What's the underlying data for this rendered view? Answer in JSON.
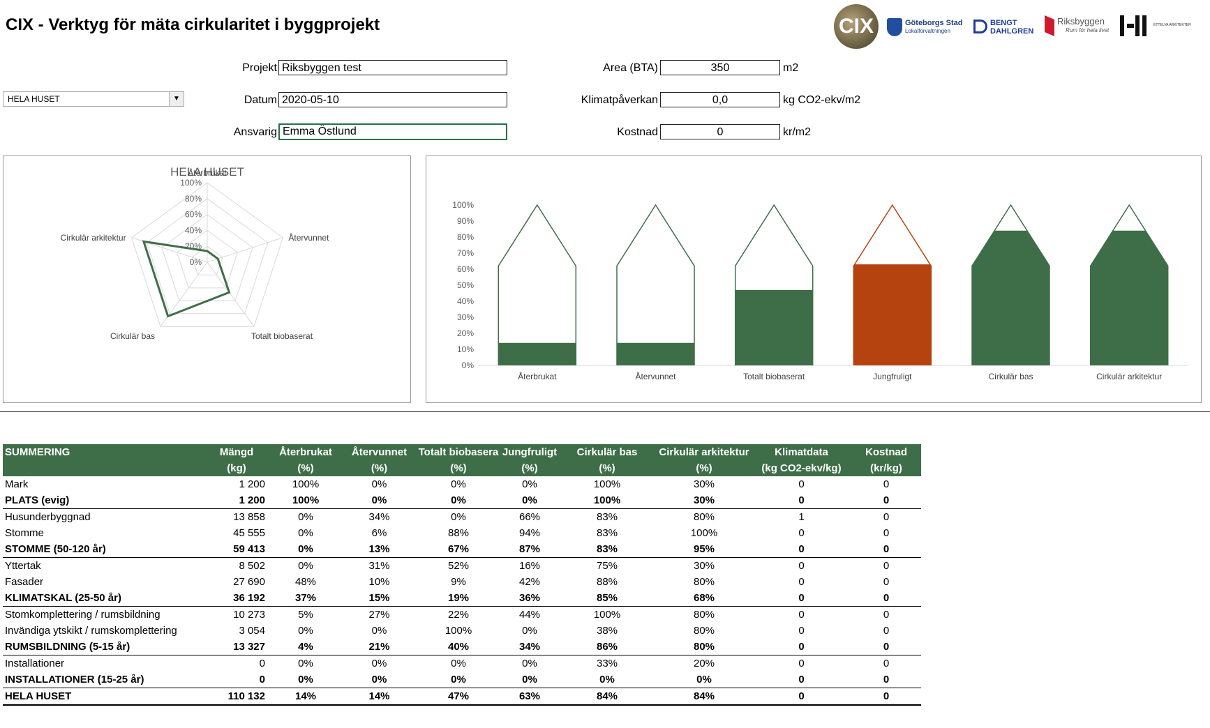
{
  "header": {
    "title": "CIX - Verktyg för mäta cirkularitet i byggprojekt"
  },
  "logos": {
    "cix": "CIX",
    "gbg_line1": "Göteborgs Stad",
    "gbg_line2": "Lokalförvaltningen",
    "bengt1": "BENGT",
    "bengt2": "DAHLGREN",
    "riks": "Riksbyggen",
    "riks_tag": "Rum för hela livet",
    "ettelva": "ETTELVA ARKITEKTER"
  },
  "dropdown": {
    "value": "HELA HUSET"
  },
  "form": {
    "projekt_label": "Projekt",
    "projekt_value": "Riksbyggen test",
    "datum_label": "Datum",
    "datum_value": "2020-05-10",
    "ansvarig_label": "Ansvarig",
    "ansvarig_value": "Emma Östlund",
    "area_label": "Area (BTA)",
    "area_value": "350",
    "area_unit": "m2",
    "klimat_label": "Klimatpåverkan",
    "klimat_value": "0,0",
    "klimat_unit": "kg CO2-ekv/m2",
    "kostnad_label": "Kostnad",
    "kostnad_value": "0",
    "kostnad_unit": "kr/m2"
  },
  "chart_data": [
    {
      "type": "radar",
      "title": "HELA HUSET",
      "axes": [
        "Återbrukat",
        "Återvunnet",
        "Totalt biobaserat",
        "Cirkulär bas",
        "Cirkulär arkitektur"
      ],
      "tick_labels": [
        "0%",
        "20%",
        "40%",
        "60%",
        "80%",
        "100%"
      ],
      "rlim": [
        0,
        100
      ],
      "series": [
        {
          "values": [
            14,
            14,
            47,
            84,
            84
          ],
          "color": "#3e6e47"
        }
      ]
    },
    {
      "type": "bar",
      "categories": [
        "Återbrukat",
        "Återvunnet",
        "Totalt biobaserat",
        "Jungfruligt",
        "Cirkulär bas",
        "Cirkulär arkitektur"
      ],
      "values": [
        14,
        14,
        47,
        63,
        84,
        84
      ],
      "colors": [
        "#3e6e47",
        "#3e6e47",
        "#3e6e47",
        "#b5430f",
        "#3e6e47",
        "#3e6e47"
      ],
      "outline_colors": [
        "#3e6e47",
        "#3e6e47",
        "#3e6e47",
        "#b5430f",
        "#3e6e47",
        "#3e6e47"
      ],
      "tick_labels": [
        "0%",
        "10%",
        "20%",
        "30%",
        "40%",
        "50%",
        "60%",
        "70%",
        "80%",
        "90%",
        "100%"
      ],
      "ylim": [
        0,
        100
      ],
      "grid": false
    }
  ],
  "table": {
    "header1": [
      "SUMMERING",
      "Mängd",
      "Återbrukat",
      "Återvunnet",
      "Totalt biobasera",
      "Jungfruligt",
      "Cirkulär bas",
      "Cirkulär arkitektur",
      "Klimatdata",
      "Kostnad"
    ],
    "header2": [
      "",
      "(kg)",
      "(%)",
      "(%)",
      "(%)",
      "(%)",
      "(%)",
      "(%)",
      "(kg CO2-ekv/kg)",
      "(kr/kg)"
    ],
    "rows": [
      {
        "cells": [
          "Mark",
          "1 200",
          "100%",
          "0%",
          "0%",
          "0%",
          "100%",
          "30%",
          "0",
          "0"
        ],
        "bold": false,
        "topline": false
      },
      {
        "cells": [
          "PLATS (evig)",
          "1 200",
          "100%",
          "0%",
          "0%",
          "0%",
          "100%",
          "30%",
          "0",
          "0"
        ],
        "bold": true,
        "topline": false
      },
      {
        "cells": [
          "Husunderbyggnad",
          "13 858",
          "0%",
          "34%",
          "0%",
          "66%",
          "83%",
          "80%",
          "1",
          "0"
        ],
        "bold": false,
        "topline": true
      },
      {
        "cells": [
          "Stomme",
          "45 555",
          "0%",
          "6%",
          "88%",
          "94%",
          "83%",
          "100%",
          "0",
          "0"
        ],
        "bold": false,
        "topline": false
      },
      {
        "cells": [
          "STOMME (50-120 år)",
          "59 413",
          "0%",
          "13%",
          "67%",
          "87%",
          "83%",
          "95%",
          "0",
          "0"
        ],
        "bold": true,
        "topline": false
      },
      {
        "cells": [
          "Yttertak",
          "8 502",
          "0%",
          "31%",
          "52%",
          "16%",
          "75%",
          "30%",
          "0",
          "0"
        ],
        "bold": false,
        "topline": true
      },
      {
        "cells": [
          "Fasader",
          "27 690",
          "48%",
          "10%",
          "9%",
          "42%",
          "88%",
          "80%",
          "0",
          "0"
        ],
        "bold": false,
        "topline": false
      },
      {
        "cells": [
          "KLIMATSKAL (25-50 år)",
          "36 192",
          "37%",
          "15%",
          "19%",
          "36%",
          "85%",
          "68%",
          "0",
          "0"
        ],
        "bold": true,
        "topline": false
      },
      {
        "cells": [
          "Stomkomplettering / rumsbildning",
          "10 273",
          "5%",
          "27%",
          "22%",
          "44%",
          "100%",
          "80%",
          "0",
          "0"
        ],
        "bold": false,
        "topline": true
      },
      {
        "cells": [
          "Invändiga ytskikt / rumskomplettering",
          "3 054",
          "0%",
          "0%",
          "100%",
          "0%",
          "38%",
          "80%",
          "0",
          "0"
        ],
        "bold": false,
        "topline": false
      },
      {
        "cells": [
          "RUMSBILDNING (5-15 år)",
          "13 327",
          "4%",
          "21%",
          "40%",
          "34%",
          "86%",
          "80%",
          "0",
          "0"
        ],
        "bold": true,
        "topline": false
      },
      {
        "cells": [
          "Installationer",
          "0",
          "0%",
          "0%",
          "0%",
          "0%",
          "33%",
          "20%",
          "0",
          "0"
        ],
        "bold": false,
        "topline": true
      },
      {
        "cells": [
          "INSTALLATIONER (15-25 år)",
          "0",
          "0%",
          "0%",
          "0%",
          "0%",
          "0%",
          "0%",
          "0",
          "0"
        ],
        "bold": true,
        "topline": false
      },
      {
        "cells": [
          "HELA HUSET",
          "110 132",
          "14%",
          "14%",
          "47%",
          "63%",
          "84%",
          "84%",
          "0",
          "0"
        ],
        "bold": true,
        "topline": true
      }
    ]
  }
}
